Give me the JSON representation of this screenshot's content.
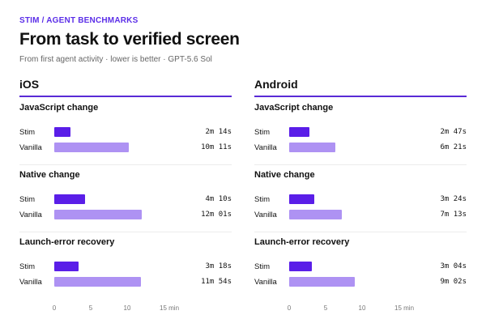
{
  "header": {
    "eyebrow": "STIM / AGENT BENCHMARKS",
    "title": "From task to verified screen",
    "subtitle": "From first agent activity · lower is better · GPT-5.6 Sol"
  },
  "colors": {
    "accent": "#5b2ee8",
    "stim": "#5a1ee8",
    "vanilla": "#ae92f3"
  },
  "chart_data": {
    "type": "bar",
    "orientation": "horizontal",
    "unit": "min",
    "xlim": [
      0,
      15
    ],
    "axis": {
      "ticks": [
        0,
        5,
        10,
        15
      ],
      "tick_labels": [
        "0",
        "5",
        "10",
        "15 min"
      ]
    },
    "panels": [
      {
        "id": "ios",
        "platform": "iOS",
        "groups": [
          {
            "title": "JavaScript change",
            "rows": [
              {
                "label": "Stim",
                "series": "stim",
                "value": 2.233,
                "display": "2m 14s"
              },
              {
                "label": "Vanilla",
                "series": "vanilla",
                "value": 10.183,
                "display": "10m 11s"
              }
            ]
          },
          {
            "title": "Native change",
            "rows": [
              {
                "label": "Stim",
                "series": "stim",
                "value": 4.167,
                "display": "4m 10s"
              },
              {
                "label": "Vanilla",
                "series": "vanilla",
                "value": 12.017,
                "display": "12m 01s"
              }
            ]
          },
          {
            "title": "Launch-error recovery",
            "rows": [
              {
                "label": "Stim",
                "series": "stim",
                "value": 3.3,
                "display": "3m 18s"
              },
              {
                "label": "Vanilla",
                "series": "vanilla",
                "value": 11.9,
                "display": "11m 54s"
              }
            ]
          }
        ]
      },
      {
        "id": "android",
        "platform": "Android",
        "groups": [
          {
            "title": "JavaScript change",
            "rows": [
              {
                "label": "Stim",
                "series": "stim",
                "value": 2.783,
                "display": "2m 47s"
              },
              {
                "label": "Vanilla",
                "series": "vanilla",
                "value": 6.35,
                "display": "6m 21s"
              }
            ]
          },
          {
            "title": "Native change",
            "rows": [
              {
                "label": "Stim",
                "series": "stim",
                "value": 3.4,
                "display": "3m 24s"
              },
              {
                "label": "Vanilla",
                "series": "vanilla",
                "value": 7.217,
                "display": "7m 13s"
              }
            ]
          },
          {
            "title": "Launch-error recovery",
            "rows": [
              {
                "label": "Stim",
                "series": "stim",
                "value": 3.067,
                "display": "3m 04s"
              },
              {
                "label": "Vanilla",
                "series": "vanilla",
                "value": 9.033,
                "display": "9m 02s"
              }
            ]
          }
        ]
      }
    ]
  }
}
